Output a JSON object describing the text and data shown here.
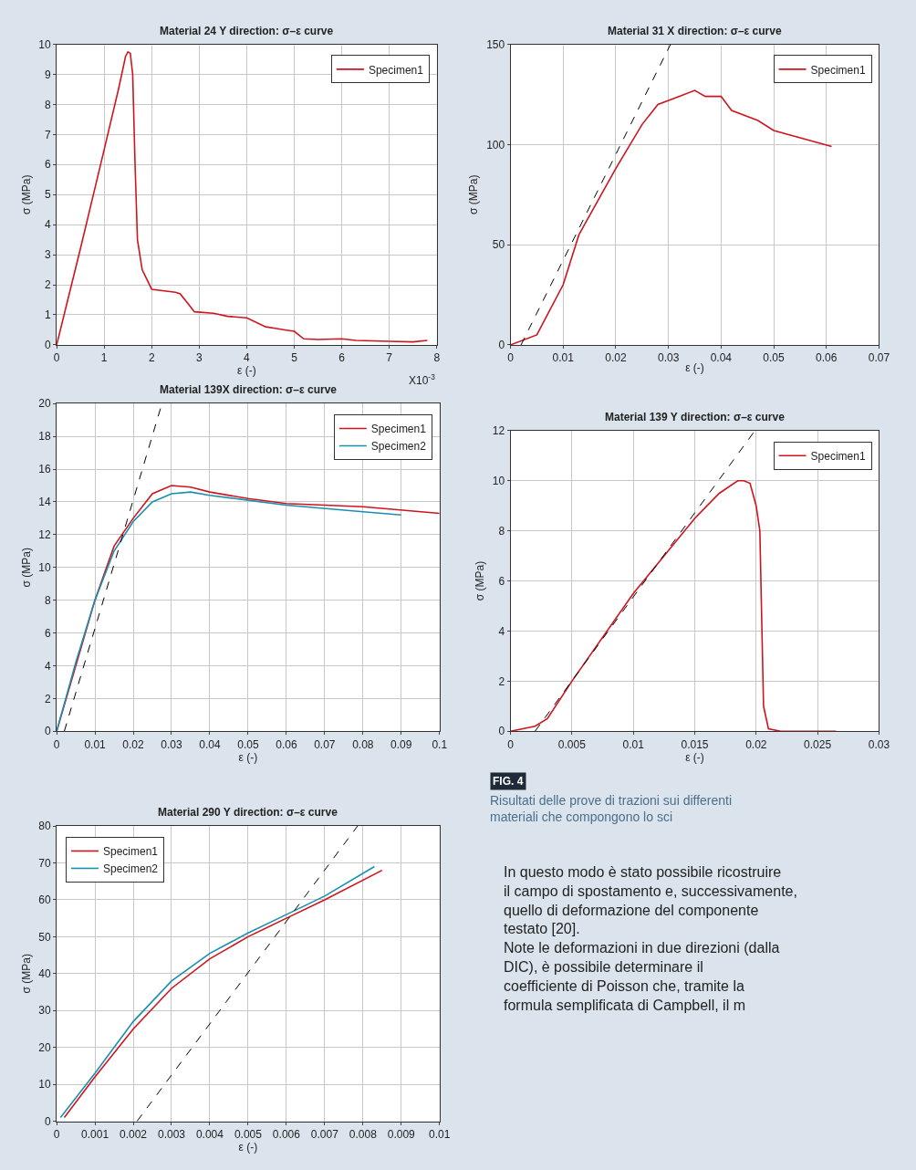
{
  "chart_data": [
    {
      "type": "line",
      "title": "Material 24 Y direction: σ–ε curve",
      "xlabel": "ε (-)",
      "ylabel": "σ (MPa)",
      "xlim": [
        0,
        8
      ],
      "ylim": [
        0,
        10
      ],
      "xticks": [
        0,
        1,
        2,
        3,
        4,
        5,
        6,
        7,
        8
      ],
      "yticks": [
        0,
        1,
        2,
        3,
        4,
        5,
        6,
        7,
        8,
        9,
        10
      ],
      "grid": true,
      "legend": "top right",
      "annotations": [
        "X10$^{-3}$"
      ],
      "series": [
        {
          "name": "Specimen1",
          "color": "#d0141e",
          "x": [
            0,
            0.5,
            1,
            1.3,
            1.45,
            1.5,
            1.55,
            1.6,
            1.65,
            1.7,
            1.8,
            2.0,
            2.5,
            2.6,
            2.75,
            2.9,
            3.3,
            3.6,
            4.0,
            4.4,
            4.6,
            4.8,
            5.0,
            5.2,
            5.5,
            6.0,
            6.3,
            7.0,
            7.5,
            7.8
          ],
          "values": [
            0,
            3.2,
            6.5,
            8.5,
            9.6,
            9.75,
            9.7,
            9.0,
            6.0,
            3.5,
            2.5,
            1.85,
            1.75,
            1.7,
            1.4,
            1.1,
            1.05,
            0.95,
            0.9,
            0.6,
            0.55,
            0.5,
            0.45,
            0.2,
            0.18,
            0.2,
            0.15,
            0.12,
            0.1,
            0.15
          ]
        }
      ]
    },
    {
      "type": "line",
      "title": "Material 31 X direction: σ–ε curve",
      "xlabel": "ε (-)",
      "ylabel": "σ (MPa)",
      "xlim": [
        0,
        0.07
      ],
      "ylim": [
        0,
        150
      ],
      "xticks": [
        0,
        0.01,
        0.02,
        0.03,
        0.04,
        0.05,
        0.06,
        0.07
      ],
      "yticks": [
        0,
        50,
        100,
        150
      ],
      "grid": true,
      "legend": "top right",
      "series": [
        {
          "name": "Specimen1",
          "color": "#d0141e",
          "x": [
            0,
            0.005,
            0.01,
            0.013,
            0.02,
            0.025,
            0.028,
            0.032,
            0.035,
            0.037,
            0.04,
            0.042,
            0.047,
            0.05,
            0.061
          ],
          "values": [
            0,
            5,
            30,
            55,
            88,
            110,
            120,
            124,
            127,
            124,
            124,
            117,
            112,
            107,
            99
          ]
        },
        {
          "color": "#000000",
          "line_style": "dashed",
          "x": [
            0.002,
            0.0304
          ],
          "values": [
            0,
            150
          ]
        }
      ]
    },
    {
      "type": "line",
      "title": "Material 139X direction: σ–ε curve",
      "xlabel": "ε (-)",
      "ylabel": "σ (MPa)",
      "xlim": [
        0,
        0.1
      ],
      "ylim": [
        0,
        20
      ],
      "xticks": [
        0,
        0.01,
        0.02,
        0.03,
        0.04,
        0.05,
        0.06,
        0.07,
        0.08,
        0.09,
        0.1
      ],
      "yticks": [
        0,
        2,
        4,
        6,
        8,
        10,
        12,
        14,
        16,
        18,
        20
      ],
      "grid": true,
      "legend": "top right",
      "series": [
        {
          "name": "Specimen1",
          "color": "#d0141e",
          "x": [
            0,
            0.005,
            0.01,
            0.015,
            0.02,
            0.025,
            0.03,
            0.035,
            0.04,
            0.05,
            0.06,
            0.08,
            0.1
          ],
          "values": [
            0,
            4,
            8,
            11.3,
            13,
            14.5,
            15,
            14.9,
            14.6,
            14.2,
            13.9,
            13.7,
            13.3
          ]
        },
        {
          "name": "Specimen2",
          "color": "#1a8fb0",
          "x": [
            0,
            0.005,
            0.01,
            0.015,
            0.02,
            0.025,
            0.03,
            0.035,
            0.04,
            0.05,
            0.06,
            0.08,
            0.09
          ],
          "values": [
            0,
            4.2,
            8,
            11,
            12.8,
            14,
            14.5,
            14.6,
            14.4,
            14.1,
            13.8,
            13.4,
            13.2
          ]
        },
        {
          "color": "#000000",
          "line_style": "dashed",
          "x": [
            0.002,
            0.0275
          ],
          "values": [
            0,
            20
          ]
        }
      ]
    },
    {
      "type": "line",
      "title": "Material 139 Y direction: σ–ε curve",
      "xlabel": "ε (-)",
      "ylabel": "σ (MPa)",
      "xlim": [
        0,
        0.03
      ],
      "ylim": [
        0,
        12
      ],
      "xticks": [
        0,
        0.005,
        0.01,
        0.015,
        0.02,
        0.025,
        0.03
      ],
      "yticks": [
        0,
        2,
        4,
        6,
        8,
        10,
        12
      ],
      "grid": true,
      "legend": "top right",
      "series": [
        {
          "name": "Specimen1",
          "color": "#d0141e",
          "x": [
            0,
            0.002,
            0.003,
            0.005,
            0.01,
            0.015,
            0.017,
            0.0185,
            0.019,
            0.0195,
            0.02,
            0.0203,
            0.0206,
            0.021,
            0.022,
            0.0265
          ],
          "values": [
            0,
            0.2,
            0.5,
            2,
            5.5,
            8.5,
            9.5,
            10,
            10,
            9.9,
            9,
            8,
            1,
            0.1,
            0,
            0
          ]
        },
        {
          "color": "#000000",
          "line_style": "dashed",
          "x": [
            0.002,
            0.0199
          ],
          "values": [
            0,
            12
          ]
        }
      ]
    },
    {
      "type": "line",
      "title": "Material 290 Y direction: σ–ε curve",
      "xlabel": "ε (-)",
      "ylabel": "σ (MPa)",
      "xlim": [
        0,
        0.01
      ],
      "ylim": [
        0,
        80
      ],
      "xticks": [
        0,
        0.001,
        0.002,
        0.003,
        0.004,
        0.005,
        0.006,
        0.007,
        0.008,
        0.009,
        0.01
      ],
      "yticks": [
        0,
        10,
        20,
        30,
        40,
        50,
        60,
        70,
        80
      ],
      "grid": true,
      "legend": "top left",
      "series": [
        {
          "name": "Specimen1",
          "color": "#d0141e",
          "x": [
            0.0002,
            0.001,
            0.002,
            0.003,
            0.004,
            0.005,
            0.006,
            0.007,
            0.0085
          ],
          "values": [
            1,
            12,
            25,
            36,
            44,
            50,
            55,
            60,
            68
          ]
        },
        {
          "name": "Specimen2",
          "color": "#1a8fb0",
          "x": [
            0.0001,
            0.001,
            0.002,
            0.003,
            0.004,
            0.005,
            0.006,
            0.007,
            0.0083
          ],
          "values": [
            1,
            13,
            27,
            38,
            45.5,
            51,
            56,
            61,
            69
          ]
        },
        {
          "color": "#000000",
          "line_style": "dashed",
          "x": [
            0.0021,
            0.00786
          ],
          "values": [
            0,
            80
          ]
        }
      ]
    },
    {
      "type": "other",
      "annotations": [
        "FIG. 4",
        "Risultati delle prove di trazioni sui differenti materiali che compongono lo sci",
        "In questo modo è stato possibile ricostruire il campo di spostamento e, successivamente, quello di deformazione del componente testato [20].",
        "Note le deformazioni in due direzioni (dalla DIC), è possibile determinare il coefficiente di Poisson che, tramite la formula semplificata di Campbell, il m"
      ]
    }
  ]
}
